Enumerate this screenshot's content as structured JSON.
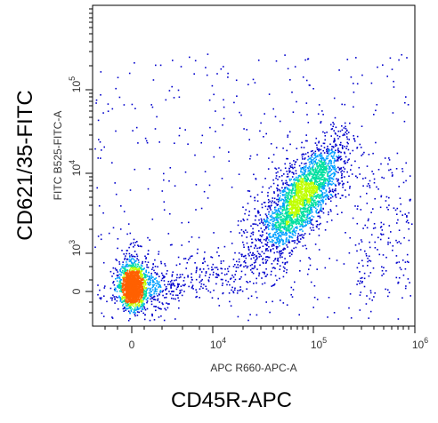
{
  "chart_data": {
    "type": "scatter",
    "style": "flow-cytometry-density-dot-plot",
    "outer_xlabel": "CD45R-APC",
    "outer_ylabel": "CD621/35-FITC",
    "inner_xlabel": "APC R660-APC-A",
    "inner_ylabel": "FITC B525-FITC-A",
    "x_axis": {
      "scale": "biexponential",
      "ticks": [
        {
          "label": "0",
          "sup": ""
        },
        {
          "label": "10",
          "sup": "4"
        },
        {
          "label": "10",
          "sup": "5"
        },
        {
          "label": "10",
          "sup": "6"
        }
      ]
    },
    "y_axis": {
      "scale": "biexponential",
      "ticks": [
        {
          "label": "0",
          "sup": ""
        },
        {
          "label": "10",
          "sup": "3"
        },
        {
          "label": "10",
          "sup": "4"
        },
        {
          "label": "10",
          "sup": "5"
        }
      ]
    },
    "populations": [
      {
        "name": "CD45R-negative cluster",
        "x_center": "0",
        "y_center": "0",
        "relative_density": "very high"
      },
      {
        "name": "CD45R-positive cluster",
        "x_center": "1e5",
        "y_center": "5e3",
        "relative_density": "high"
      }
    ],
    "density_colors": [
      "#0000cc",
      "#00a0ff",
      "#00e0a0",
      "#c0ff00",
      "#ff6000"
    ],
    "grid": false,
    "legend": "none"
  }
}
